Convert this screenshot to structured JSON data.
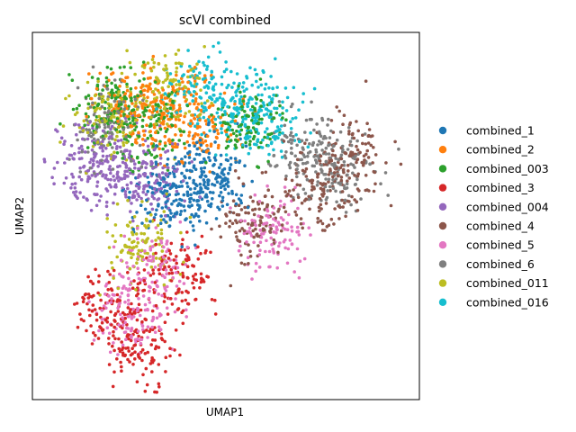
{
  "chart_data": {
    "type": "scatter",
    "title": "scVI combined",
    "xlabel": "UMAP1",
    "ylabel": "UMAP2",
    "x_ticks": "none",
    "y_ticks": "none",
    "grid": false,
    "legend_position": "right",
    "series": [
      {
        "name": "combined_1",
        "color": "#1f77b4",
        "cluster_centers": [
          [
            -1.2,
            4.4
          ],
          [
            -2.2,
            4.1
          ],
          [
            -0.4,
            4.7
          ]
        ]
      },
      {
        "name": "combined_2",
        "color": "#ff7f0e",
        "cluster_centers": [
          [
            -2.0,
            6.6
          ],
          [
            -0.9,
            6.2
          ],
          [
            -3.3,
            6.9
          ]
        ]
      },
      {
        "name": "combined_003",
        "color": "#2ca02c",
        "cluster_centers": [
          [
            -4.2,
            6.8
          ],
          [
            -2.8,
            6.1
          ],
          [
            0.8,
            6.3
          ]
        ]
      },
      {
        "name": "combined_3",
        "color": "#d62728",
        "cluster_centers": [
          [
            -4.1,
            0.8
          ],
          [
            -3.2,
            -0.5
          ],
          [
            -1.8,
            1.6
          ]
        ]
      },
      {
        "name": "combined_004",
        "color": "#9467bd",
        "cluster_centers": [
          [
            -5.0,
            5.3
          ],
          [
            -3.8,
            4.9
          ],
          [
            -2.6,
            4.6
          ]
        ]
      },
      {
        "name": "combined_4",
        "color": "#8c564b",
        "cluster_centers": [
          [
            3.4,
            4.3
          ],
          [
            4.5,
            5.3
          ],
          [
            0.9,
            3.4
          ]
        ]
      },
      {
        "name": "combined_5",
        "color": "#e377c2",
        "cluster_centers": [
          [
            -3.5,
            0.5
          ],
          [
            -2.6,
            1.9
          ],
          [
            1.7,
            3.0
          ]
        ]
      },
      {
        "name": "combined_6",
        "color": "#7f7f7f",
        "cluster_centers": [
          [
            4.1,
            4.8
          ],
          [
            3.1,
            5.6
          ],
          [
            -4.3,
            6.2
          ]
        ]
      },
      {
        "name": "combined_011",
        "color": "#bcbd22",
        "cluster_centers": [
          [
            -3.1,
            2.7
          ],
          [
            -4.2,
            6.4
          ],
          [
            -2.1,
            7.3
          ]
        ]
      },
      {
        "name": "combined_016",
        "color": "#17becf",
        "cluster_centers": [
          [
            0.5,
            6.7
          ],
          [
            1.6,
            6.5
          ],
          [
            -1.0,
            7.2
          ]
        ]
      }
    ]
  }
}
